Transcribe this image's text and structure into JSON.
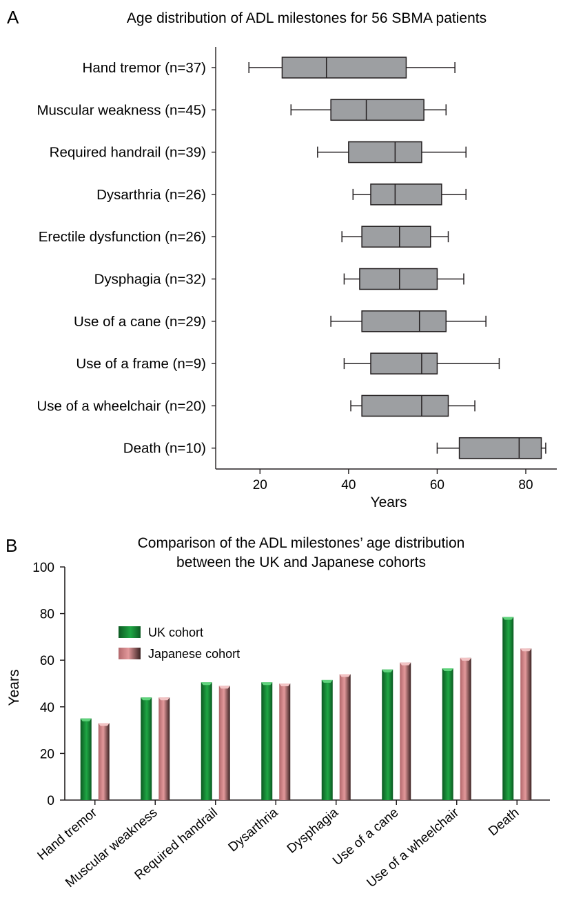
{
  "chart_data": [
    {
      "panel_label": "A",
      "type": "boxplot",
      "title": "Age distribution of ADL milestones for 56 SBMA patients",
      "xlabel": "Years",
      "xlim": [
        10,
        87
      ],
      "xticks": [
        "20",
        "40",
        "60",
        "80"
      ],
      "categories": [
        "Hand tremor (n=37)",
        "Muscular weakness (n=45)",
        "Required handrail (n=39)",
        "Dysarthria (n=26)",
        "Erectile dysfunction (n=26)",
        "Dysphagia (n=32)",
        "Use of a cane (n=29)",
        "Use of a frame (n=9)",
        "Use of a wheelchair (n=20)",
        "Death (n=10)"
      ],
      "boxes": [
        {
          "whisker_low": 17.5,
          "q1": 25,
          "median": 35,
          "q3": 53,
          "whisker_high": 64
        },
        {
          "whisker_low": 27,
          "q1": 36,
          "median": 44,
          "q3": 57,
          "whisker_high": 62
        },
        {
          "whisker_low": 33,
          "q1": 40,
          "median": 50.5,
          "q3": 56.5,
          "whisker_high": 66.5
        },
        {
          "whisker_low": 41,
          "q1": 45,
          "median": 50.5,
          "q3": 61,
          "whisker_high": 66.5
        },
        {
          "whisker_low": 38.5,
          "q1": 43,
          "median": 51.5,
          "q3": 58.5,
          "whisker_high": 62.5
        },
        {
          "whisker_low": 39,
          "q1": 42.5,
          "median": 51.5,
          "q3": 60,
          "whisker_high": 66
        },
        {
          "whisker_low": 36,
          "q1": 43,
          "median": 56,
          "q3": 62,
          "whisker_high": 71
        },
        {
          "whisker_low": 39,
          "q1": 45,
          "median": 56.5,
          "q3": 60,
          "whisker_high": 74
        },
        {
          "whisker_low": 40.5,
          "q1": 43,
          "median": 56.5,
          "q3": 62.5,
          "whisker_high": 68.5
        },
        {
          "whisker_low": 60,
          "q1": 65,
          "median": 78.5,
          "q3": 83.5,
          "whisker_high": 84.5
        }
      ],
      "colors": {
        "box": "#9d9fa2"
      }
    },
    {
      "panel_label": "B",
      "type": "bar",
      "title": [
        "Comparison of the ADL milestones’ age distribution",
        "between the UK and Japanese cohorts"
      ],
      "ylabel": "Years",
      "ylim": [
        0,
        100
      ],
      "yticks": [
        "0",
        "20",
        "40",
        "60",
        "80",
        "100"
      ],
      "categories": [
        "Hand tremor",
        "Muscular weakness",
        "Required handrail",
        "Dysarthria",
        "Dysphagia",
        "Use of a cane",
        "Use of a wheelchair",
        "Death"
      ],
      "series": [
        {
          "name": "UK cohort",
          "values": [
            35,
            44,
            50.5,
            50.5,
            51.5,
            56,
            56.5,
            78.5
          ],
          "color": "#1fa644"
        },
        {
          "name": "Japanese cohort",
          "values": [
            33,
            44,
            49,
            50,
            54,
            59,
            61,
            65
          ],
          "color": "#e3999b"
        }
      ],
      "legend_position": "upper-left"
    }
  ]
}
